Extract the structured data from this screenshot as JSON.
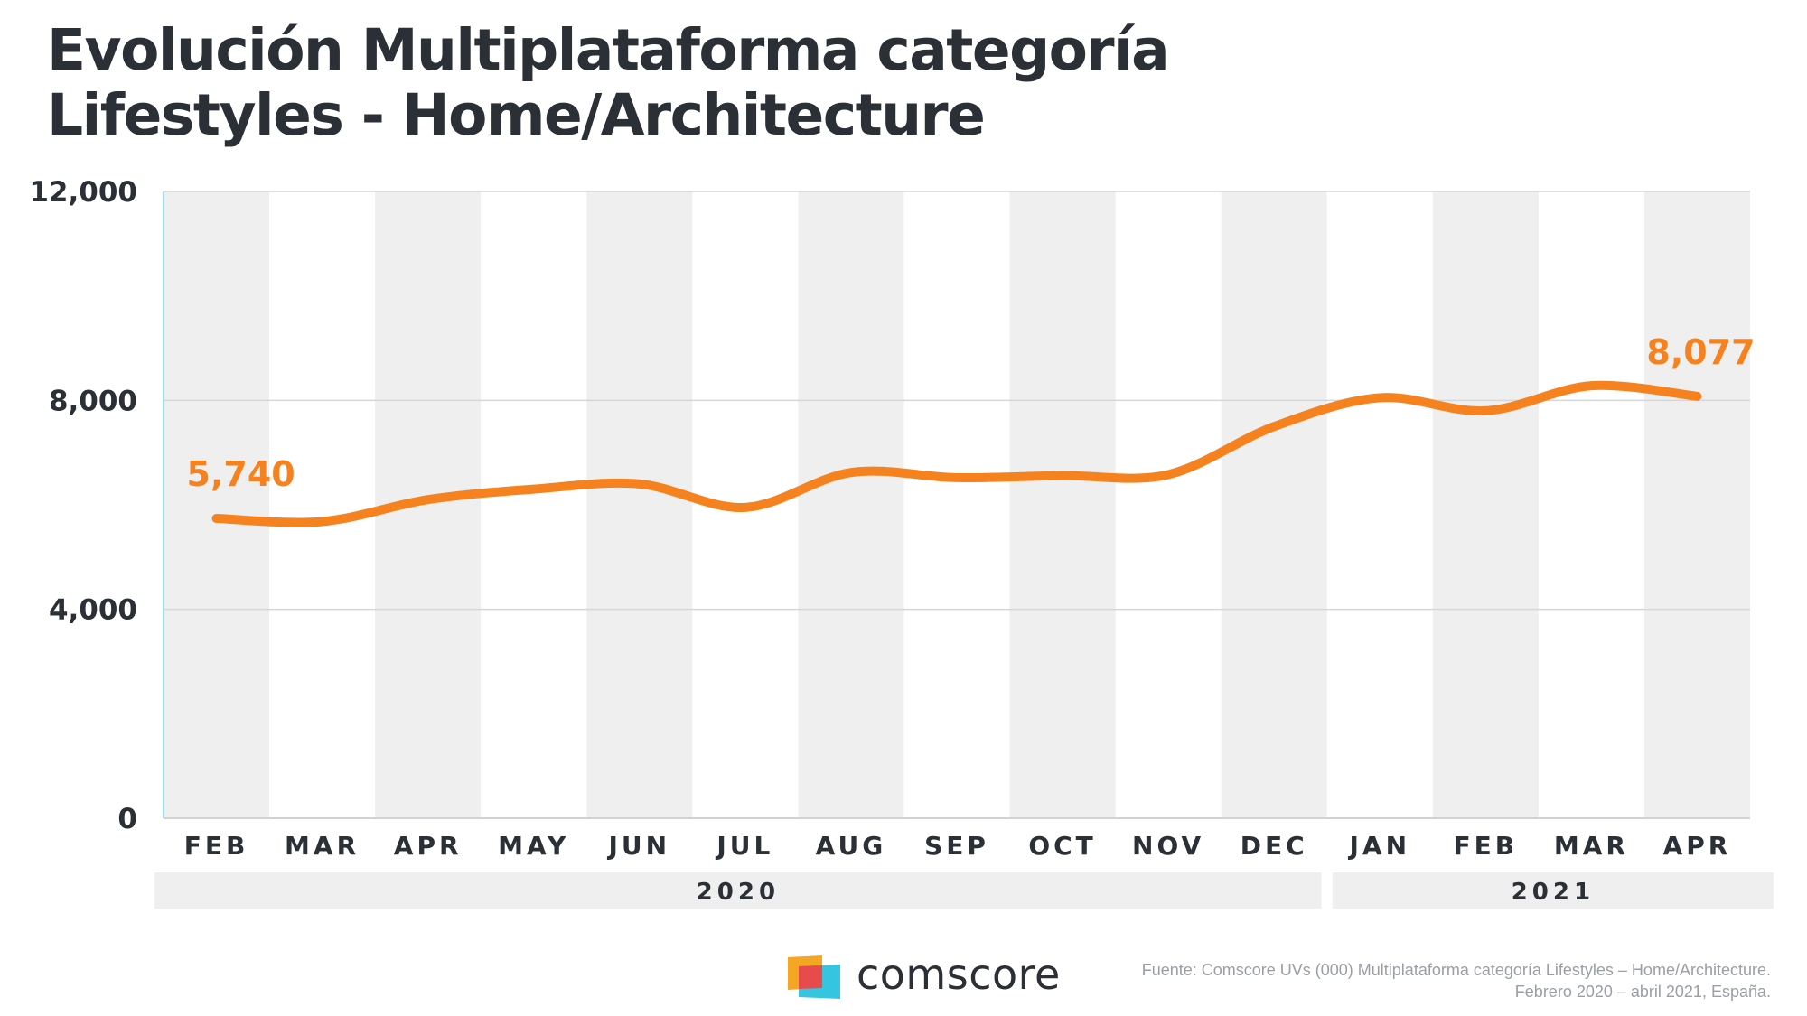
{
  "title": {
    "line1": "Evolución Multiplataforma categoría",
    "line2": "Lifestyles - Home/Architecture"
  },
  "chart_data": {
    "type": "line",
    "title": "Evolución Multiplataforma categoría Lifestyles - Home/Architecture",
    "categories": [
      "FEB",
      "MAR",
      "APR",
      "MAY",
      "JUN",
      "JUL",
      "AUG",
      "SEP",
      "OCT",
      "NOV",
      "DEC",
      "JAN",
      "FEB",
      "MAR",
      "APR"
    ],
    "year_groups": [
      {
        "label": "2020",
        "months": 11
      },
      {
        "label": "2021",
        "months": 4
      }
    ],
    "series": [
      {
        "values": [
          5740,
          5680,
          6100,
          6300,
          6400,
          5950,
          6620,
          6520,
          6560,
          6580,
          7500,
          8050,
          7800,
          8280,
          8077
        ],
        "color": "#f5821f"
      }
    ],
    "ylim": [
      0,
      12000
    ],
    "yticks": [
      0,
      4000,
      8000,
      12000
    ],
    "ytick_labels": [
      "0",
      "4,000",
      "8,000",
      "12,000"
    ],
    "annotations": [
      {
        "label": "5,740",
        "index": 0
      },
      {
        "label": "8,077",
        "index": 14
      }
    ],
    "grid": true,
    "band_color": "#efefef"
  },
  "logo": {
    "text": "comscore",
    "colors": [
      "#f5a623",
      "#e84b4b",
      "#36c5e0"
    ]
  },
  "source": {
    "line1": "Fuente: Comscore UVs (000) Multiplataforma categoría Lifestyles – Home/Architecture.",
    "line2": "Febrero 2020 – abril 2021, España."
  }
}
